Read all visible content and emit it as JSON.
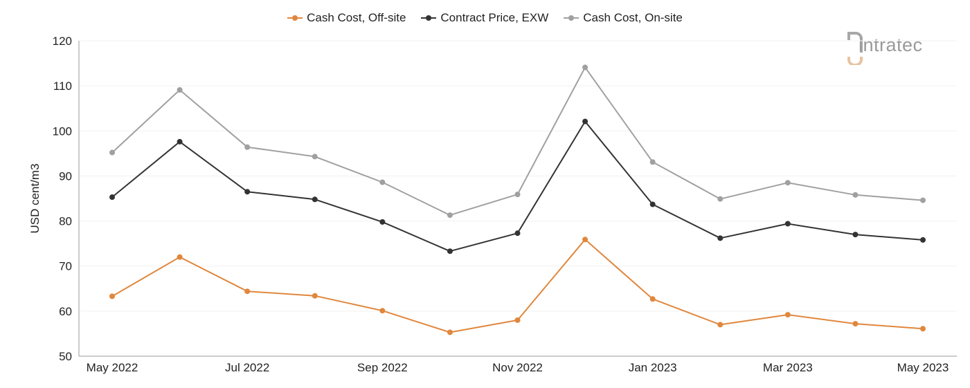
{
  "legend": [
    {
      "name": "Cash Cost, Off-site",
      "color": "#e0873d"
    },
    {
      "name": "Contract Price, EXW",
      "color": "#333333"
    },
    {
      "name": "Cash Cost, On-site",
      "color": "#a0a0a0"
    }
  ],
  "logo": {
    "text": "intratec",
    "icon": "intratec-logo-icon"
  },
  "chart_data": {
    "type": "line",
    "ylabel": "USD cent/m3",
    "xlabel": "",
    "ylim": [
      50,
      120
    ],
    "yticks": [
      50,
      60,
      70,
      80,
      90,
      100,
      110,
      120
    ],
    "grid": "horizontal",
    "legend_position": "top-center",
    "x": [
      "May 2022",
      "Jun 2022",
      "Jul 2022",
      "Aug 2022",
      "Sep 2022",
      "Oct 2022",
      "Nov 2022",
      "Dec 2022",
      "Jan 2023",
      "Feb 2023",
      "Mar 2023",
      "Apr 2023",
      "May 2023"
    ],
    "xtick_labels": [
      "May 2022",
      "Jul 2022",
      "Sep 2022",
      "Nov 2022",
      "Jan 2023",
      "Mar 2023",
      "May 2023"
    ],
    "series": [
      {
        "name": "Cash Cost, Off-site",
        "color": "#e0873d",
        "values": [
          63.3,
          72.0,
          64.4,
          63.4,
          60.1,
          55.3,
          58.0,
          75.9,
          62.7,
          57.0,
          59.2,
          57.2,
          56.1
        ]
      },
      {
        "name": "Contract Price, EXW",
        "color": "#333333",
        "values": [
          85.3,
          97.6,
          86.5,
          84.8,
          79.8,
          73.3,
          77.3,
          102.1,
          83.7,
          76.2,
          79.4,
          77.0,
          75.8
        ]
      },
      {
        "name": "Cash Cost, On-site",
        "color": "#a0a0a0",
        "values": [
          95.2,
          109.1,
          96.4,
          94.3,
          88.6,
          81.3,
          85.9,
          114.1,
          93.1,
          84.9,
          88.5,
          85.8,
          84.6
        ]
      }
    ]
  }
}
